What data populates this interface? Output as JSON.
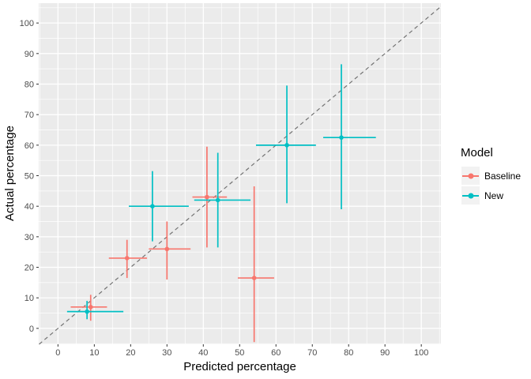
{
  "chart_data": {
    "type": "scatter",
    "title": "",
    "xlabel": "Predicted percentage",
    "ylabel": "Actual percentage",
    "xlim": [
      -5.3,
      105.4
    ],
    "ylim": [
      -5.2,
      106.5
    ],
    "x_ticks": [
      0,
      10,
      20,
      30,
      40,
      50,
      60,
      70,
      80,
      90,
      100
    ],
    "y_ticks": [
      0,
      10,
      20,
      30,
      40,
      50,
      60,
      70,
      80,
      90,
      100
    ],
    "grid": {
      "major": true,
      "minor": true
    },
    "panel_bg": "#EBEBEB",
    "grid_color": "#FFFFFF",
    "tick_color": "#333333",
    "tick_label_color": "#4D4D4D",
    "identity_line": {
      "style": "dashed",
      "color": "#737373",
      "slope": 1,
      "intercept": 0
    },
    "legend": {
      "title": "Model",
      "position": "right",
      "key_bg": "#F2F2F2"
    },
    "series": [
      {
        "name": "Baseline",
        "color": "#F8766D",
        "points": [
          {
            "x": 9,
            "y": 7,
            "xmin": 3.5,
            "xmax": 13.5,
            "ymin": 2.5,
            "ymax": 11
          },
          {
            "x": 19,
            "y": 23,
            "xmin": 14,
            "xmax": 24.5,
            "ymin": 16.5,
            "ymax": 29
          },
          {
            "x": 30,
            "y": 26,
            "xmin": 25,
            "xmax": 36.5,
            "ymin": 16,
            "ymax": 35
          },
          {
            "x": 41,
            "y": 43,
            "xmin": 37,
            "xmax": 46.5,
            "ymin": 26.5,
            "ymax": 59.5
          },
          {
            "x": 54,
            "y": 16.5,
            "xmin": 49.5,
            "xmax": 59.5,
            "ymin": -4.5,
            "ymax": 46.5
          }
        ]
      },
      {
        "name": "New",
        "color": "#00BFC4",
        "points": [
          {
            "x": 8,
            "y": 5.5,
            "xmin": 2.5,
            "xmax": 18,
            "ymin": 3,
            "ymax": 9
          },
          {
            "x": 26,
            "y": 40,
            "xmin": 19.5,
            "xmax": 36,
            "ymin": 28.5,
            "ymax": 51.5
          },
          {
            "x": 44,
            "y": 42,
            "xmin": 37.5,
            "xmax": 53,
            "ymin": 26.5,
            "ymax": 57.5
          },
          {
            "x": 63,
            "y": 60,
            "xmin": 54.5,
            "xmax": 71,
            "ymin": 41,
            "ymax": 79.5
          },
          {
            "x": 78,
            "y": 62.5,
            "xmin": 73,
            "xmax": 87.5,
            "ymin": 39,
            "ymax": 86.5
          }
        ]
      }
    ]
  }
}
